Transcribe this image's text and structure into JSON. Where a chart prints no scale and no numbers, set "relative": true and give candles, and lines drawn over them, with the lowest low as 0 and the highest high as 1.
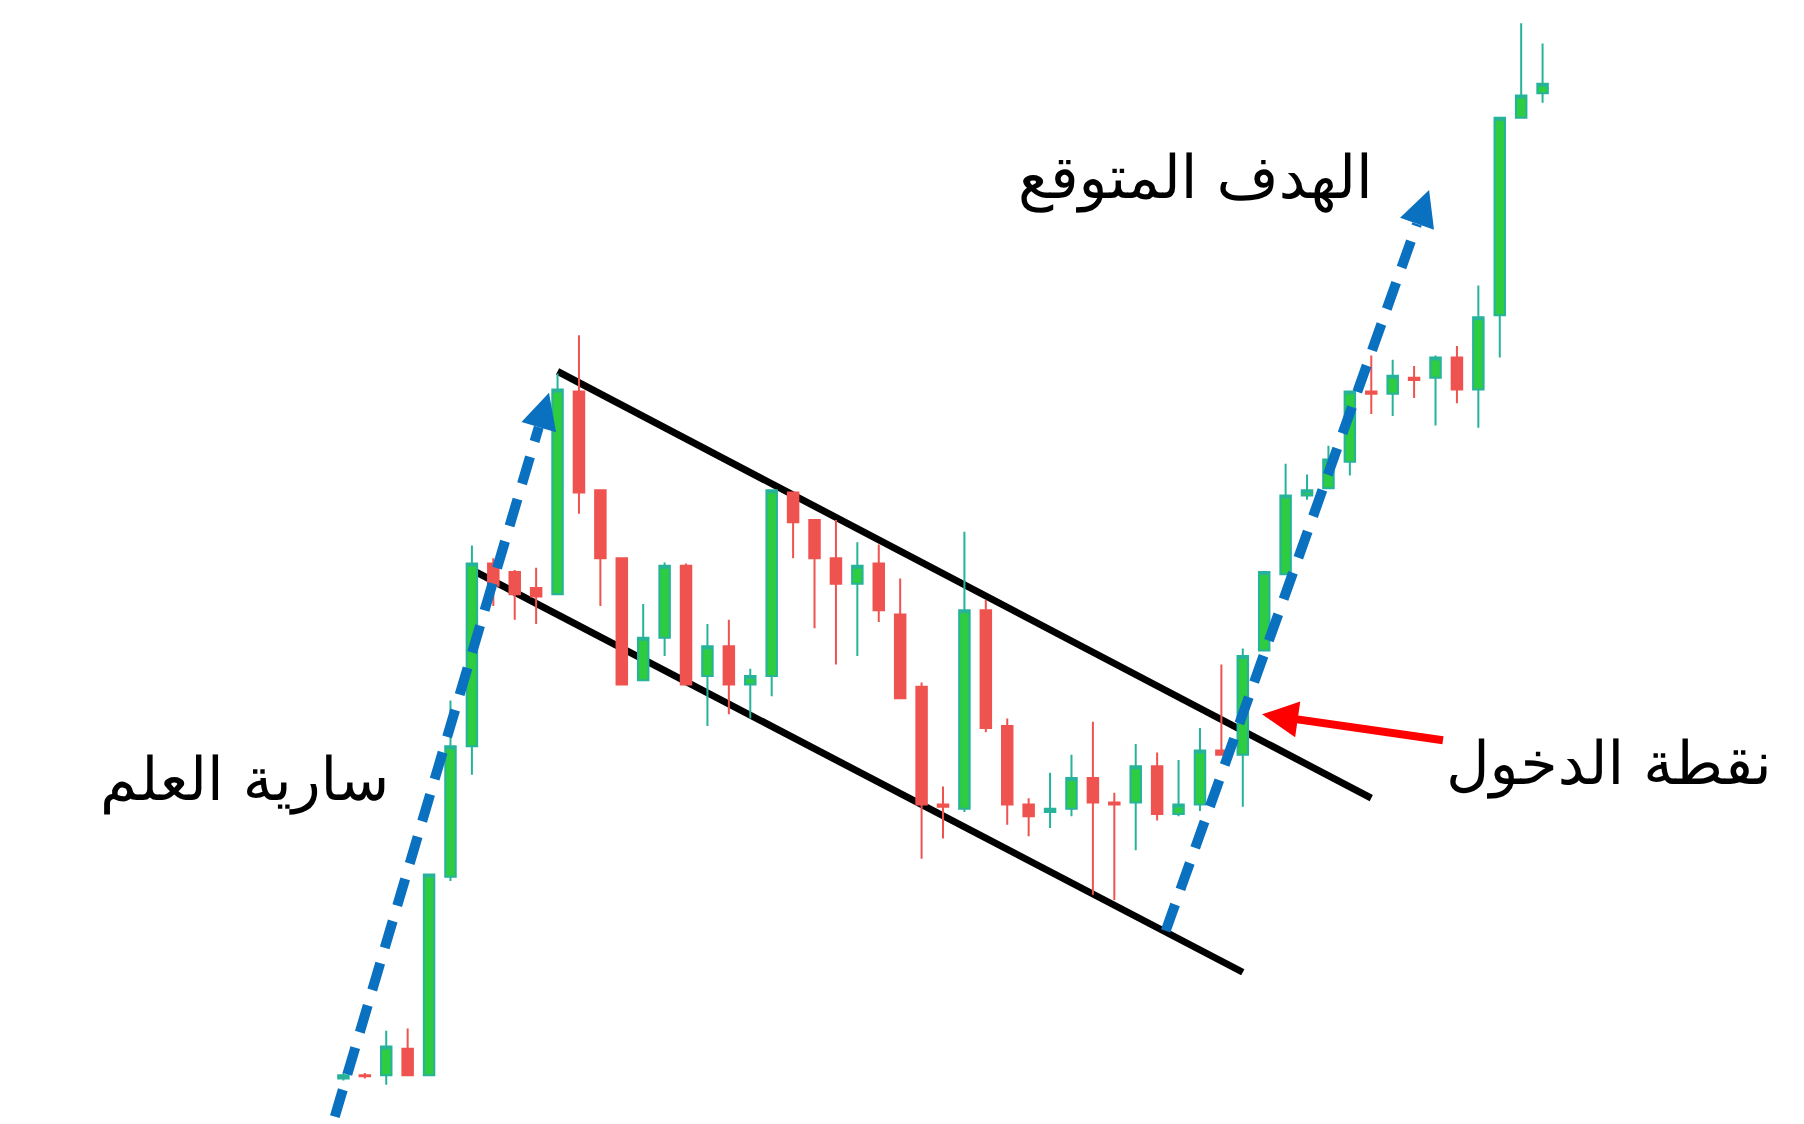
{
  "chart_data": {
    "type": "candlestick",
    "relative": true,
    "categories": [
      null,
      null,
      null,
      null,
      null,
      null,
      null,
      null,
      null,
      null,
      null,
      null,
      null,
      null,
      null,
      null,
      null,
      null,
      null,
      null,
      null,
      null,
      null,
      null,
      null,
      null,
      null,
      null,
      null,
      null,
      null,
      null,
      null,
      null,
      null,
      null,
      null,
      null,
      null,
      null,
      null,
      null,
      null,
      null,
      null,
      null,
      null,
      null,
      null,
      null,
      null,
      null,
      null,
      null,
      null,
      null,
      null
    ],
    "ohlc": [
      [
        0.006,
        0.011,
        0.004,
        0.009
      ],
      [
        0.009,
        0.011,
        0.006,
        0.008
      ],
      [
        0.009,
        0.051,
        0,
        0.036
      ],
      [
        0.034,
        0.053,
        0.009,
        0.009
      ],
      [
        0.009,
        0.198,
        0.009,
        0.198
      ],
      [
        0.196,
        0.362,
        0.192,
        0.319
      ],
      [
        0.319,
        0.508,
        0.292,
        0.491
      ],
      [
        0.491,
        0.496,
        0.451,
        0.47
      ],
      [
        0.483,
        0.485,
        0.438,
        0.462
      ],
      [
        0.468,
        0.487,
        0.434,
        0.46
      ],
      [
        0.462,
        0.67,
        0.462,
        0.655
      ],
      [
        0.653,
        0.706,
        0.538,
        0.558
      ],
      [
        0.56,
        0.56,
        0.451,
        0.496
      ],
      [
        0.496,
        0.496,
        0.377,
        0.377
      ],
      [
        0.381,
        0.453,
        0.381,
        0.421
      ],
      [
        0.421,
        0.492,
        0.404,
        0.489
      ],
      [
        0.489,
        0.491,
        0.377,
        0.377
      ],
      [
        0.385,
        0.434,
        0.338,
        0.413
      ],
      [
        0.413,
        0.438,
        0.349,
        0.377
      ],
      [
        0.377,
        0.392,
        0.345,
        0.385
      ],
      [
        0.385,
        0.56,
        0.366,
        0.56
      ],
      [
        0.558,
        0.558,
        0.496,
        0.53
      ],
      [
        0.532,
        0.532,
        0.43,
        0.496
      ],
      [
        0.496,
        0.532,
        0.396,
        0.472
      ],
      [
        0.472,
        0.511,
        0.404,
        0.489
      ],
      [
        0.491,
        0.509,
        0.436,
        0.447
      ],
      [
        0.443,
        0.477,
        0.364,
        0.364
      ],
      [
        0.375,
        0.379,
        0.213,
        0.264
      ],
      [
        0.264,
        0.281,
        0.232,
        0.262
      ],
      [
        0.26,
        0.521,
        0.257,
        0.447
      ],
      [
        0.447,
        0.457,
        0.332,
        0.336
      ],
      [
        0.338,
        0.345,
        0.245,
        0.264
      ],
      [
        0.264,
        0.27,
        0.234,
        0.253
      ],
      [
        0.257,
        0.294,
        0.242,
        0.26
      ],
      [
        0.26,
        0.311,
        0.253,
        0.289
      ],
      [
        0.289,
        0.342,
        0.179,
        0.266
      ],
      [
        0.266,
        0.275,
        0.174,
        0.264
      ],
      [
        0.266,
        0.321,
        0.221,
        0.3
      ],
      [
        0.3,
        0.313,
        0.249,
        0.255
      ],
      [
        0.255,
        0.306,
        0.253,
        0.264
      ],
      [
        0.264,
        0.336,
        0.258,
        0.315
      ],
      [
        0.315,
        0.396,
        0.311,
        0.311
      ],
      [
        0.311,
        0.411,
        0.262,
        0.404
      ],
      [
        0.409,
        0.483,
        0.409,
        0.483
      ],
      [
        0.481,
        0.585,
        0.481,
        0.555
      ],
      [
        0.555,
        0.575,
        0.551,
        0.56
      ],
      [
        0.562,
        0.602,
        0.562,
        0.589
      ],
      [
        0.587,
        0.653,
        0.574,
        0.653
      ],
      [
        0.653,
        0.687,
        0.632,
        0.651
      ],
      [
        0.651,
        0.683,
        0.63,
        0.668
      ],
      [
        0.666,
        0.677,
        0.647,
        0.664
      ],
      [
        0.666,
        0.687,
        0.621,
        0.685
      ],
      [
        0.685,
        0.696,
        0.642,
        0.655
      ],
      [
        0.655,
        0.753,
        0.619,
        0.723
      ],
      [
        0.725,
        0.911,
        0.685,
        0.911
      ],
      [
        0.911,
        1,
        0.911,
        0.932
      ],
      [
        0.934,
        0.981,
        0.925,
        0.943
      ]
    ],
    "series": [
      {
        "type": "line",
        "color": "#000000",
        "values": [
          null,
          null,
          null,
          null,
          null,
          null,
          null,
          null,
          null,
          null,
          0.672,
          null,
          null,
          null,
          null,
          null,
          null,
          null,
          null,
          null,
          null,
          null,
          null,
          null,
          null,
          null,
          null,
          null,
          null,
          null,
          null,
          null,
          null,
          null,
          null,
          null,
          null,
          null,
          null,
          null,
          null,
          null,
          null,
          null,
          null,
          null,
          null,
          null,
          0.27,
          null,
          null,
          null,
          null,
          null,
          null,
          null,
          null
        ]
      },
      {
        "type": "line",
        "color": "#000000",
        "values": [
          null,
          null,
          null,
          null,
          null,
          null,
          0.485,
          null,
          null,
          null,
          null,
          null,
          null,
          null,
          null,
          null,
          null,
          null,
          null,
          null,
          null,
          null,
          null,
          null,
          null,
          null,
          null,
          null,
          null,
          null,
          null,
          null,
          null,
          null,
          null,
          null,
          null,
          null,
          null,
          null,
          null,
          null,
          0.106,
          null,
          null,
          null,
          null,
          null,
          null,
          null,
          null,
          null,
          null,
          null,
          null,
          null,
          null
        ]
      }
    ],
    "annotations": [
      "سارية العلم",
      "الهدف المتوقع",
      "نقطة الدخول"
    ]
  }
}
